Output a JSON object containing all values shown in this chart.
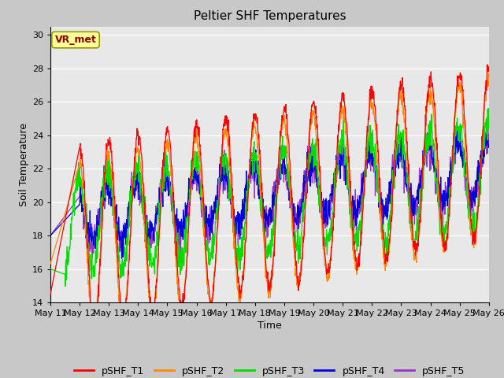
{
  "title": "Peltier SHF Temperatures",
  "xlabel": "Time",
  "ylabel": "Soil Temperature",
  "ylim": [
    14,
    30.5
  ],
  "yticks": [
    14,
    16,
    18,
    20,
    22,
    24,
    26,
    28,
    30
  ],
  "series_colors": {
    "pSHF_T1": "#ff0000",
    "pSHF_T2": "#ff8800",
    "pSHF_T3": "#00dd00",
    "pSHF_T4": "#0000dd",
    "pSHF_T5": "#9933cc"
  },
  "annotation_text": "VR_met",
  "annotation_color": "#8b0000",
  "annotation_bg": "#ffff99",
  "fig_bg": "#c8c8c8",
  "axes_bg": "#e8e8e8",
  "n_days": 15,
  "start_day": 11,
  "end_day": 26,
  "points_per_day": 96
}
